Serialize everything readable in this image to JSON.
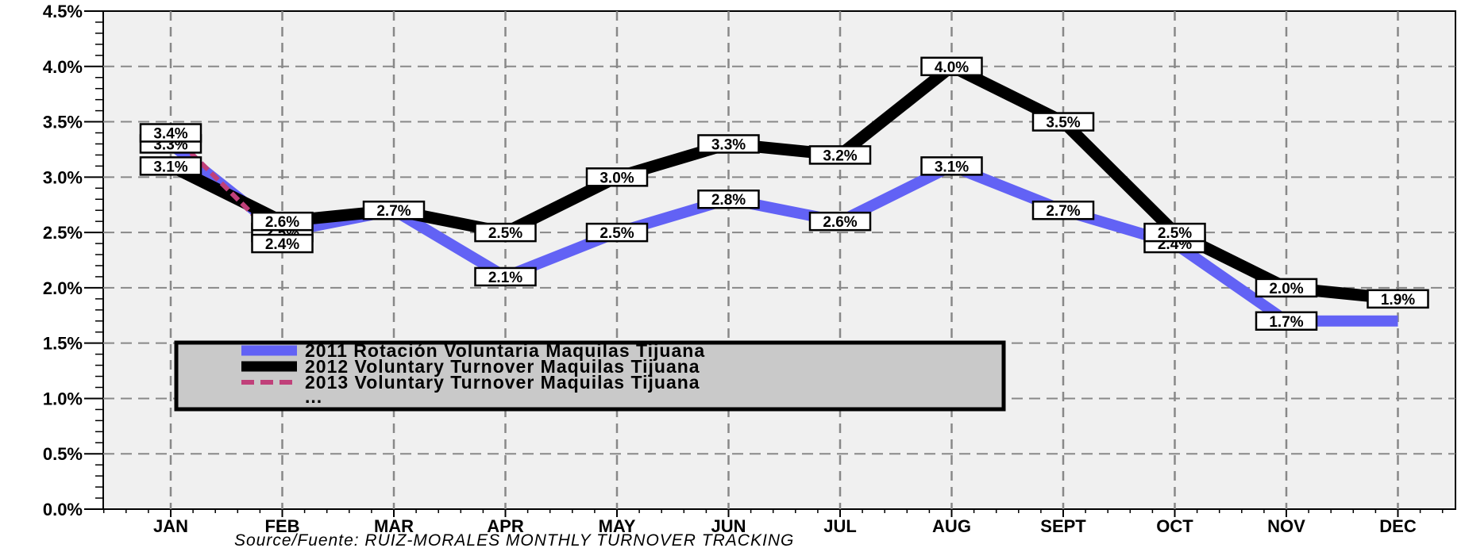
{
  "chart_data": {
    "type": "line",
    "categories": [
      "JAN",
      "FEB",
      "MAR",
      "APR",
      "MAY",
      "JUN",
      "JUL",
      "AUG",
      "SEPT",
      "OCT",
      "NOV",
      "DEC"
    ],
    "yticks": [
      "0.0%",
      "0.5%",
      "1.0%",
      "1.5%",
      "2.0%",
      "2.5%",
      "3.0%",
      "3.5%",
      "4.0%",
      "4.5%"
    ],
    "ylim": [
      0,
      4.5
    ],
    "grid": true,
    "series": [
      {
        "name": "2011 Rotación Voluntaria Maquilas Tijuana",
        "color": "#6262f5",
        "style": "solid",
        "values": [
          3.3,
          2.5,
          2.7,
          2.1,
          2.5,
          2.8,
          2.6,
          3.1,
          2.7,
          2.4,
          1.7,
          1.7
        ],
        "labels": [
          "3.3%",
          "2.5%",
          "2.7%",
          "2.1%",
          "2.5%",
          "2.8%",
          "2.6%",
          "3.1%",
          "2.7%",
          "2.4%",
          "1.7%",
          ""
        ]
      },
      {
        "name": "2012 Voluntary Turnover Maquilas Tijuana",
        "color": "#000000",
        "style": "solid",
        "values": [
          3.1,
          2.6,
          2.7,
          2.5,
          3.0,
          3.3,
          3.2,
          4.0,
          3.5,
          2.5,
          2.0,
          1.9
        ],
        "labels": [
          "3.1%",
          "2.6%",
          "",
          "2.5%",
          "3.0%",
          "3.3%",
          "3.2%",
          "4.0%",
          "3.5%",
          "2.5%",
          "2.0%",
          "1.9%"
        ]
      },
      {
        "name": "2013 Voluntary Turnover Maquilas Tijuana",
        "color": "#c0407a",
        "style": "dashed",
        "values": [
          3.4,
          2.4,
          null,
          null,
          null,
          null,
          null,
          null,
          null,
          null,
          null,
          null
        ],
        "labels": [
          "3.4%",
          "2.4%",
          "",
          "",
          "",
          "",
          "",
          "",
          "",
          "",
          "",
          ""
        ]
      }
    ],
    "legend_extra": "...",
    "legend_position": "bottom-left",
    "source": "Source/Fuente: RUIZ-MORALES MONTHLY TURNOVER TRACKING"
  }
}
